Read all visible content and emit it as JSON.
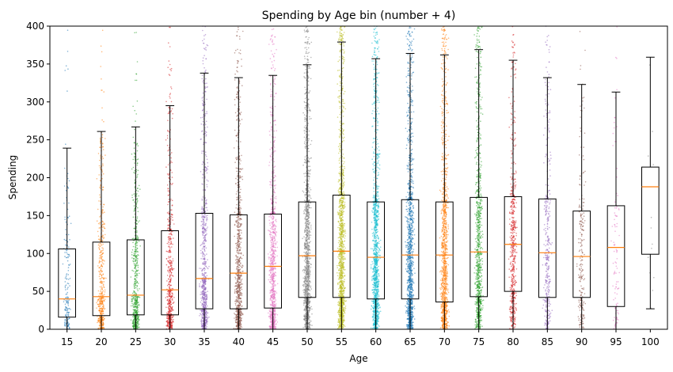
{
  "chart_data": {
    "type": "box",
    "title": "Spending by Age bin (number + 4)",
    "xlabel": "Age",
    "ylabel": "Spending",
    "ylim": [
      0,
      400
    ],
    "yticks": [
      0,
      50,
      100,
      150,
      200,
      250,
      300,
      350,
      400
    ],
    "grid": false,
    "legend": "none",
    "overlay": "jittered points per bin",
    "categories": [
      "15",
      "20",
      "25",
      "30",
      "35",
      "40",
      "45",
      "50",
      "55",
      "60",
      "65",
      "70",
      "75",
      "80",
      "85",
      "90",
      "95",
      "100"
    ],
    "colors": [
      "#1f77b4",
      "#ff7f0e",
      "#2ca02c",
      "#d62728",
      "#9467bd",
      "#8c564b",
      "#e377c2",
      "#7f7f7f",
      "#bcbd22",
      "#17becf",
      "#1f77b4",
      "#ff7f0e",
      "#2ca02c",
      "#d62728",
      "#9467bd",
      "#8c564b",
      "#e377c2",
      "#7f7f7f"
    ],
    "median_color": "#ff7f0e",
    "boxes": [
      {
        "min": 0,
        "q1": 16,
        "median": 40,
        "q3": 106,
        "max": 239
      },
      {
        "min": 0,
        "q1": 18,
        "median": 43,
        "q3": 115,
        "max": 261
      },
      {
        "min": 0,
        "q1": 19,
        "median": 45,
        "q3": 118,
        "max": 267
      },
      {
        "min": 0,
        "q1": 19,
        "median": 52,
        "q3": 130,
        "max": 295
      },
      {
        "min": 0,
        "q1": 27,
        "median": 67,
        "q3": 153,
        "max": 338
      },
      {
        "min": 0,
        "q1": 27,
        "median": 74,
        "q3": 151,
        "max": 332
      },
      {
        "min": 0,
        "q1": 28,
        "median": 83,
        "q3": 152,
        "max": 335
      },
      {
        "min": 0,
        "q1": 42,
        "median": 97,
        "q3": 168,
        "max": 349
      },
      {
        "min": 0,
        "q1": 42,
        "median": 103,
        "q3": 177,
        "max": 379
      },
      {
        "min": 0,
        "q1": 40,
        "median": 95,
        "q3": 168,
        "max": 357
      },
      {
        "min": 0,
        "q1": 40,
        "median": 98,
        "q3": 171,
        "max": 364
      },
      {
        "min": 0,
        "q1": 36,
        "median": 98,
        "q3": 168,
        "max": 362
      },
      {
        "min": 0,
        "q1": 43,
        "median": 102,
        "q3": 174,
        "max": 369
      },
      {
        "min": 0,
        "q1": 50,
        "median": 112,
        "q3": 175,
        "max": 355
      },
      {
        "min": 0,
        "q1": 42,
        "median": 101,
        "q3": 172,
        "max": 332
      },
      {
        "min": 0,
        "q1": 42,
        "median": 96,
        "q3": 156,
        "max": 323
      },
      {
        "min": 0,
        "q1": 30,
        "median": 108,
        "q3": 163,
        "max": 313
      },
      {
        "min": 27,
        "q1": 99,
        "median": 188,
        "q3": 214,
        "max": 359
      }
    ],
    "point_counts": [
      180,
      520,
      620,
      600,
      820,
      880,
      940,
      1250,
      1400,
      1300,
      1280,
      1150,
      900,
      600,
      380,
      240,
      110,
      14
    ]
  }
}
